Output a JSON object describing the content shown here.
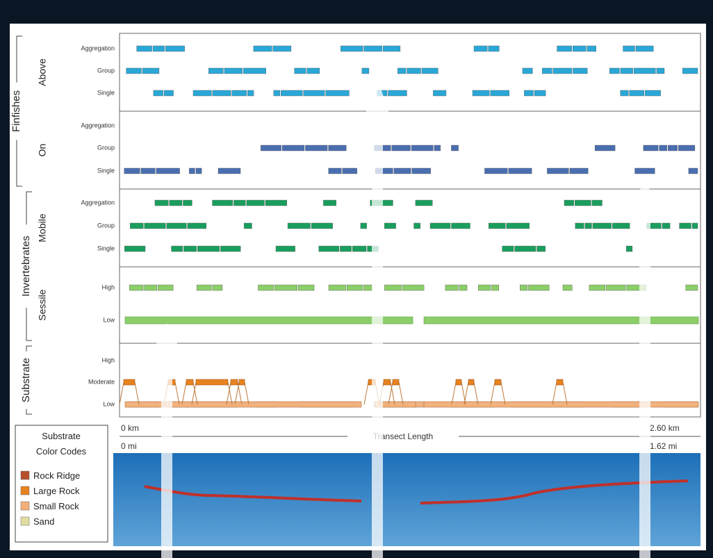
{
  "groups": [
    {
      "label": "Finfishes",
      "subgroups": [
        {
          "label": "Above",
          "rows": [
            "Aggregation",
            "Group",
            "Single"
          ]
        },
        {
          "label": "On",
          "rows": [
            "Aggregation",
            "Group",
            "Single"
          ]
        }
      ]
    },
    {
      "label": "Invertebrates",
      "subgroups": [
        {
          "label": "Mobile",
          "rows": [
            "Aggregation",
            "Group",
            "Single"
          ]
        },
        {
          "label": "Sessile",
          "rows": [
            "High",
            "Low"
          ]
        }
      ]
    },
    {
      "label": "Substrate",
      "rows": [
        "High",
        "Moderate",
        "Low"
      ]
    }
  ],
  "axis": {
    "start_km": "0 km",
    "end_km": "2.60 km",
    "title": "Transect Length",
    "start_mi": "0 mi",
    "end_mi": "1.62 mi"
  },
  "legend": {
    "title": [
      "Substrate",
      "Color Codes"
    ],
    "items": [
      {
        "label": "Rock Ridge",
        "color": "#b5502a"
      },
      {
        "label": "Large Rock",
        "color": "#e8821e"
      },
      {
        "label": "Small Rock",
        "color": "#f3b07a"
      },
      {
        "label": "Sand",
        "color": "#e3dca0"
      }
    ]
  }
}
